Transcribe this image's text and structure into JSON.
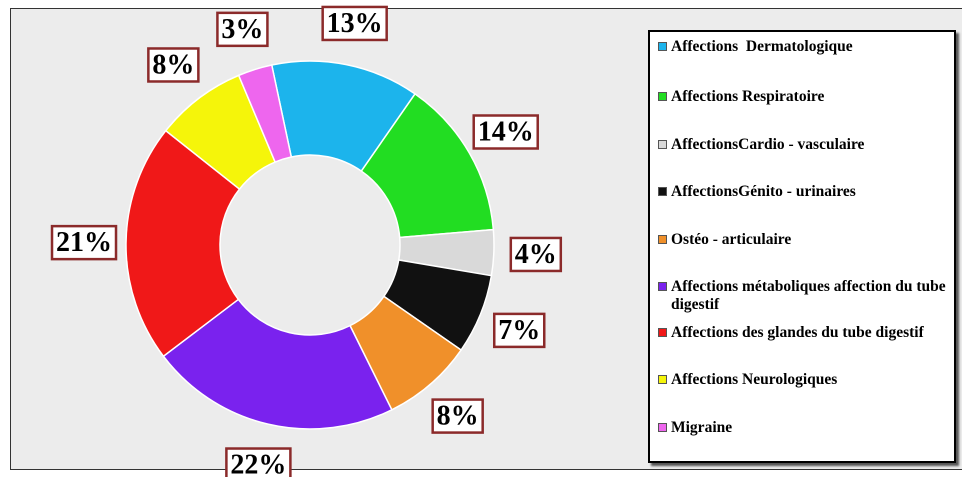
{
  "chart_data": {
    "type": "donut",
    "categories": [
      "Affections  Dermatologique",
      "Affections Respiratoire",
      "AffectionsCardio - vasculaire",
      "AffectionsGénito - urinaires",
      "Ostéo - articulaire",
      "Affections métaboliques affection du tube digestif",
      "Affections des glandes du tube digestif",
      "Affections Neurologiques",
      "Migraine"
    ],
    "values": [
      13,
      14,
      4,
      7,
      8,
      22,
      21,
      8,
      3
    ],
    "value_labels": [
      "13%",
      "14%",
      "4%",
      "7%",
      "8%",
      "22%",
      "21%",
      "8%",
      "3%"
    ],
    "colors": [
      "#1cb4ec",
      "#22dd22",
      "#d9d9d9",
      "#111111",
      "#f0902a",
      "#7a22ee",
      "#f01818",
      "#f5f50a",
      "#ee66ee"
    ],
    "legend": "right"
  }
}
